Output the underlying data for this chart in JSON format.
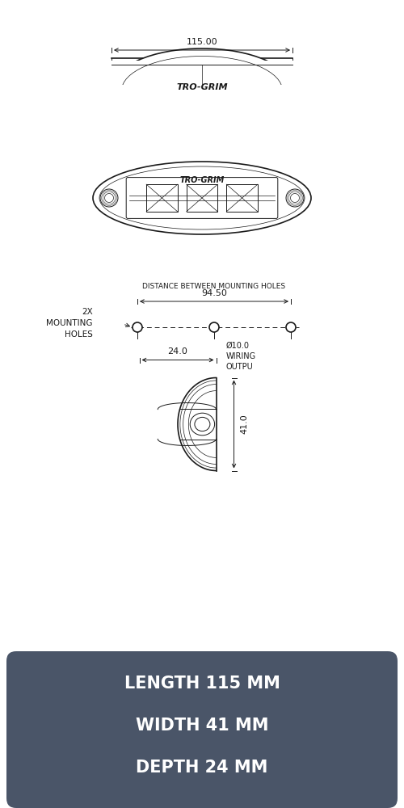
{
  "bg_color": "#ffffff",
  "line_color": "#1a1a1a",
  "dark_box_color": "#4a5568",
  "text_color_white": "#ffffff",
  "brand": "TRO-GRIM",
  "dim_label_length": "115.00",
  "dim_label_mount": "94.50",
  "dim_label_depth": "24.0",
  "dim_label_height": "41.0",
  "label_distance": "DISTANCE BETWEEN MOUNTING HOLES",
  "label_mounting": "2X\nMOUNTING\nHOLES",
  "label_wiring": "Ø10.0\nWIRING\nOUTPU",
  "specs_line1": "LENGTH 115 MM",
  "specs_line2": "WIDTH 41 MM",
  "specs_line3": "DEPTH 24 MM"
}
